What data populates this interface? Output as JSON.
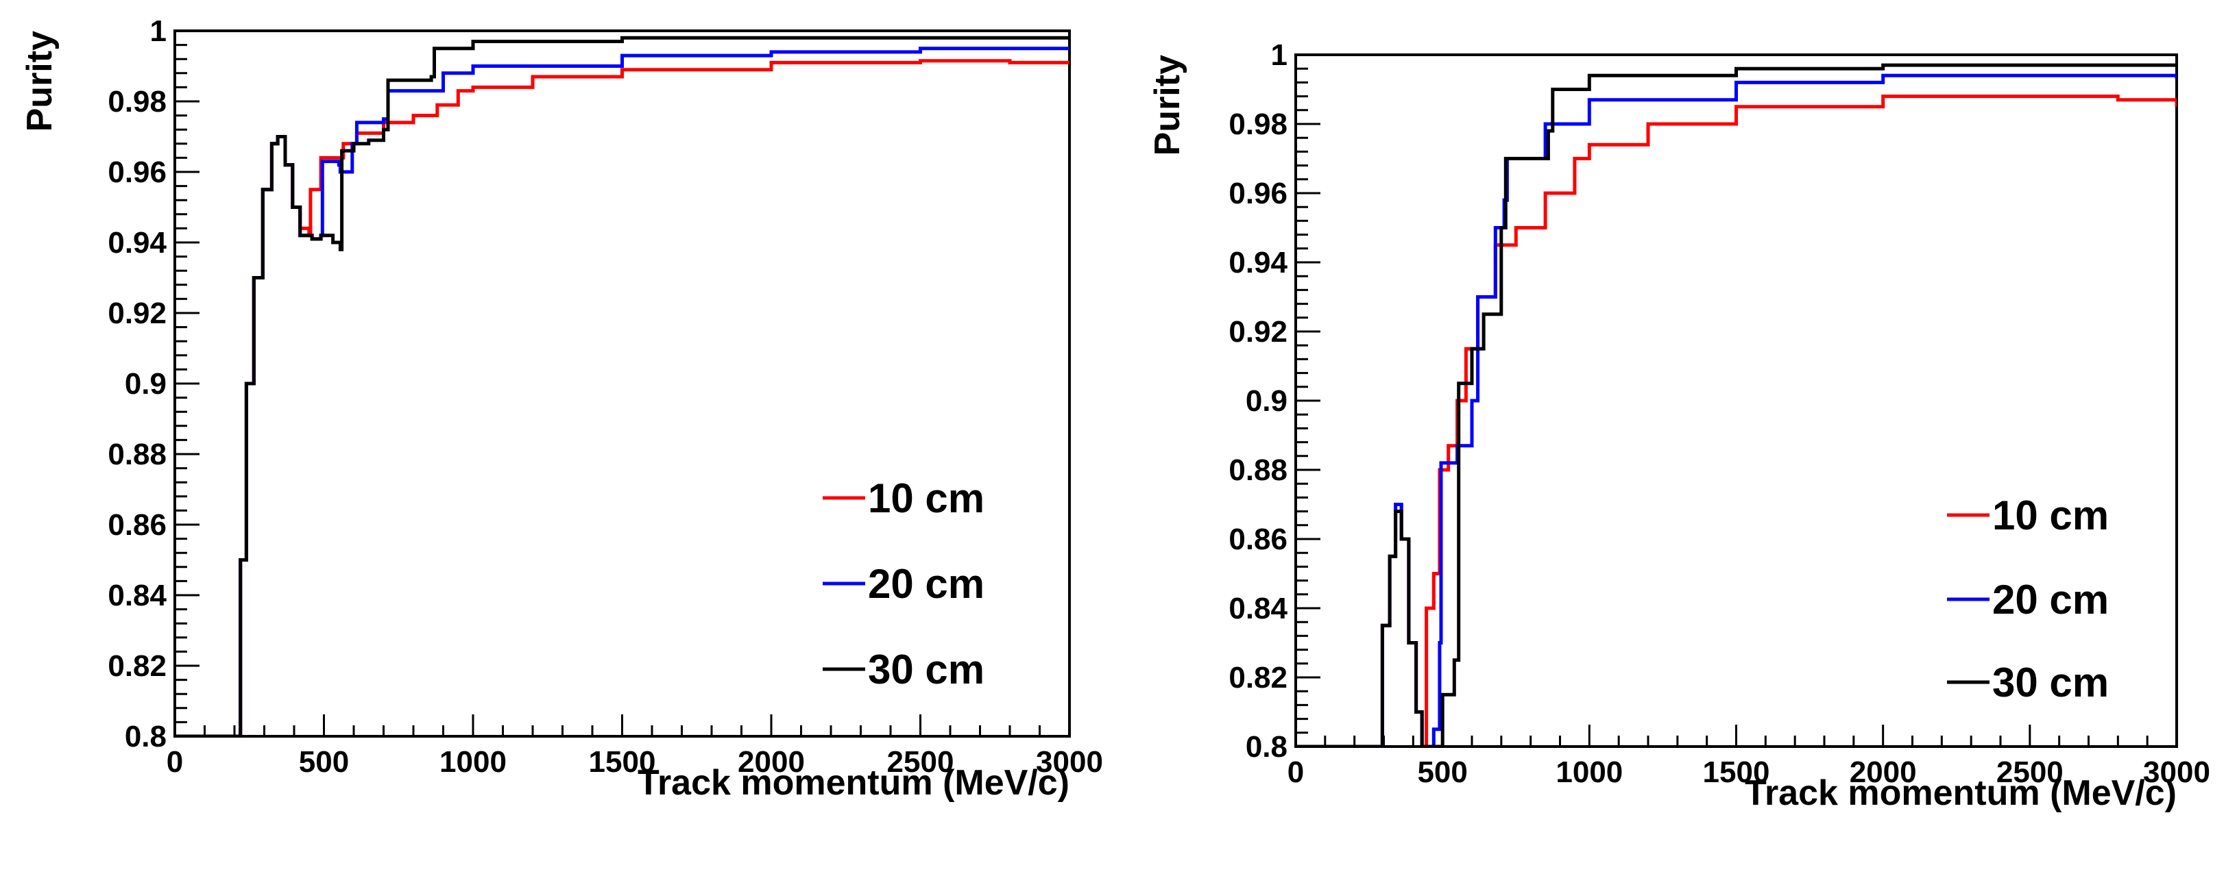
{
  "chart_data": [
    {
      "type": "line",
      "title": "",
      "xlabel": "Track momentum (MeV/c)",
      "ylabel": "Purity",
      "xlim": [
        0,
        3000
      ],
      "ylim": [
        0.8,
        1.0
      ],
      "x_ticks": [
        0,
        500,
        1000,
        1500,
        2000,
        2500,
        3000
      ],
      "x_tick_labels": [
        "0",
        "500",
        "1000",
        "1500",
        "2000",
        "2500",
        "3000"
      ],
      "y_ticks": [
        0.8,
        0.82,
        0.84,
        0.86,
        0.88,
        0.9,
        0.92,
        0.94,
        0.96,
        0.98,
        1.0
      ],
      "y_tick_labels": [
        "0.8",
        "0.82",
        "0.84",
        "0.86",
        "0.88",
        "0.9",
        "0.92",
        "0.94",
        "0.96",
        "0.98",
        "1"
      ],
      "legend_position": "bottom-right",
      "grid": false,
      "series": [
        {
          "name": "10 cm",
          "color": "#ff0000",
          "points": [
            [
              0,
              0.8
            ],
            [
              210,
              0.8
            ],
            [
              212,
              0.8
            ],
            [
              220,
              0.85
            ],
            [
              240,
              0.9
            ],
            [
              265,
              0.93
            ],
            [
              295,
              0.955
            ],
            [
              325,
              0.968
            ],
            [
              345,
              0.97
            ],
            [
              370,
              0.962
            ],
            [
              395,
              0.95
            ],
            [
              420,
              0.944
            ],
            [
              450,
              0.942
            ],
            [
              455,
              0.955
            ],
            [
              480,
              0.955
            ],
            [
              490,
              0.964
            ],
            [
              560,
              0.964
            ],
            [
              565,
              0.968
            ],
            [
              600,
              0.968
            ],
            [
              610,
              0.971
            ],
            [
              700,
              0.974
            ],
            [
              800,
              0.976
            ],
            [
              880,
              0.979
            ],
            [
              950,
              0.983
            ],
            [
              1000,
              0.984
            ],
            [
              1200,
              0.987
            ],
            [
              1500,
              0.989
            ],
            [
              2000,
              0.991
            ],
            [
              2500,
              0.9915
            ],
            [
              2800,
              0.991
            ],
            [
              3000,
              0.9905
            ]
          ]
        },
        {
          "name": "20 cm",
          "color": "#0000ff",
          "points": [
            [
              0,
              0.8
            ],
            [
              210,
              0.8
            ],
            [
              212,
              0.8
            ],
            [
              220,
              0.85
            ],
            [
              240,
              0.9
            ],
            [
              265,
              0.93
            ],
            [
              295,
              0.955
            ],
            [
              325,
              0.968
            ],
            [
              345,
              0.97
            ],
            [
              370,
              0.962
            ],
            [
              395,
              0.95
            ],
            [
              420,
              0.942
            ],
            [
              460,
              0.941
            ],
            [
              490,
              0.942
            ],
            [
              495,
              0.963
            ],
            [
              550,
              0.962
            ],
            [
              555,
              0.96
            ],
            [
              590,
              0.96
            ],
            [
              595,
              0.968
            ],
            [
              610,
              0.974
            ],
            [
              700,
              0.975
            ],
            [
              715,
              0.983
            ],
            [
              900,
              0.988
            ],
            [
              1000,
              0.99
            ],
            [
              1500,
              0.993
            ],
            [
              2000,
              0.994
            ],
            [
              2500,
              0.995
            ],
            [
              3000,
              0.995
            ]
          ]
        },
        {
          "name": "30 cm",
          "color": "#000000",
          "points": [
            [
              0,
              0.8
            ],
            [
              210,
              0.8
            ],
            [
              212,
              0.8
            ],
            [
              220,
              0.85
            ],
            [
              240,
              0.9
            ],
            [
              265,
              0.93
            ],
            [
              295,
              0.955
            ],
            [
              325,
              0.968
            ],
            [
              345,
              0.97
            ],
            [
              370,
              0.962
            ],
            [
              395,
              0.95
            ],
            [
              420,
              0.942
            ],
            [
              460,
              0.941
            ],
            [
              490,
              0.942
            ],
            [
              530,
              0.94
            ],
            [
              555,
              0.938
            ],
            [
              560,
              0.966
            ],
            [
              600,
              0.968
            ],
            [
              650,
              0.969
            ],
            [
              700,
              0.972
            ],
            [
              715,
              0.986
            ],
            [
              860,
              0.987
            ],
            [
              870,
              0.995
            ],
            [
              1000,
              0.997
            ],
            [
              1500,
              0.998
            ],
            [
              2000,
              0.998
            ],
            [
              3000,
              0.998
            ]
          ]
        }
      ]
    },
    {
      "type": "line",
      "title": "",
      "xlabel": "Track momentum (MeV/c)",
      "ylabel": "Purity",
      "xlim": [
        0,
        3000
      ],
      "ylim": [
        0.8,
        1.0
      ],
      "x_ticks": [
        0,
        500,
        1000,
        1500,
        2000,
        2500,
        3000
      ],
      "x_tick_labels": [
        "0",
        "500",
        "1000",
        "1500",
        "2000",
        "2500",
        "3000"
      ],
      "y_ticks": [
        0.8,
        0.82,
        0.84,
        0.86,
        0.88,
        0.9,
        0.92,
        0.94,
        0.96,
        0.98,
        1.0
      ],
      "y_tick_labels": [
        "0.8",
        "0.82",
        "0.84",
        "0.86",
        "0.88",
        "0.9",
        "0.92",
        "0.94",
        "0.96",
        "0.98",
        "1"
      ],
      "legend_position": "bottom-right",
      "grid": false,
      "series": [
        {
          "name": "10 cm",
          "color": "#ff0000",
          "points": [
            [
              0,
              0.8
            ],
            [
              290,
              0.8
            ],
            [
              295,
              0.835
            ],
            [
              320,
              0.855
            ],
            [
              340,
              0.87
            ],
            [
              360,
              0.86
            ],
            [
              385,
              0.83
            ],
            [
              410,
              0.81
            ],
            [
              430,
              0.8
            ],
            [
              445,
              0.84
            ],
            [
              470,
              0.85
            ],
            [
              490,
              0.88
            ],
            [
              520,
              0.887
            ],
            [
              550,
              0.9
            ],
            [
              580,
              0.915
            ],
            [
              620,
              0.93
            ],
            [
              680,
              0.945
            ],
            [
              750,
              0.95
            ],
            [
              850,
              0.96
            ],
            [
              950,
              0.97
            ],
            [
              1000,
              0.974
            ],
            [
              1200,
              0.98
            ],
            [
              1500,
              0.985
            ],
            [
              2000,
              0.988
            ],
            [
              2500,
              0.988
            ],
            [
              2800,
              0.987
            ],
            [
              3000,
              0.985
            ]
          ]
        },
        {
          "name": "20 cm",
          "color": "#0000ff",
          "points": [
            [
              0,
              0.8
            ],
            [
              290,
              0.8
            ],
            [
              295,
              0.835
            ],
            [
              320,
              0.855
            ],
            [
              340,
              0.87
            ],
            [
              360,
              0.86
            ],
            [
              385,
              0.83
            ],
            [
              410,
              0.81
            ],
            [
              430,
              0.8
            ],
            [
              470,
              0.805
            ],
            [
              490,
              0.83
            ],
            [
              495,
              0.882
            ],
            [
              550,
              0.887
            ],
            [
              600,
              0.9
            ],
            [
              620,
              0.93
            ],
            [
              680,
              0.95
            ],
            [
              710,
              0.958
            ],
            [
              720,
              0.97
            ],
            [
              850,
              0.98
            ],
            [
              1000,
              0.987
            ],
            [
              1500,
              0.992
            ],
            [
              2000,
              0.994
            ],
            [
              2500,
              0.994
            ],
            [
              3000,
              0.993
            ]
          ]
        },
        {
          "name": "30 cm",
          "color": "#000000",
          "points": [
            [
              0,
              0.8
            ],
            [
              290,
              0.8
            ],
            [
              295,
              0.835
            ],
            [
              320,
              0.855
            ],
            [
              340,
              0.868
            ],
            [
              360,
              0.86
            ],
            [
              385,
              0.83
            ],
            [
              410,
              0.81
            ],
            [
              430,
              0.8
            ],
            [
              470,
              0.8
            ],
            [
              500,
              0.815
            ],
            [
              540,
              0.825
            ],
            [
              555,
              0.905
            ],
            [
              600,
              0.915
            ],
            [
              640,
              0.925
            ],
            [
              700,
              0.95
            ],
            [
              715,
              0.97
            ],
            [
              860,
              0.978
            ],
            [
              875,
              0.99
            ],
            [
              1000,
              0.994
            ],
            [
              1500,
              0.996
            ],
            [
              2000,
              0.997
            ],
            [
              3000,
              0.997
            ]
          ]
        }
      ]
    }
  ]
}
